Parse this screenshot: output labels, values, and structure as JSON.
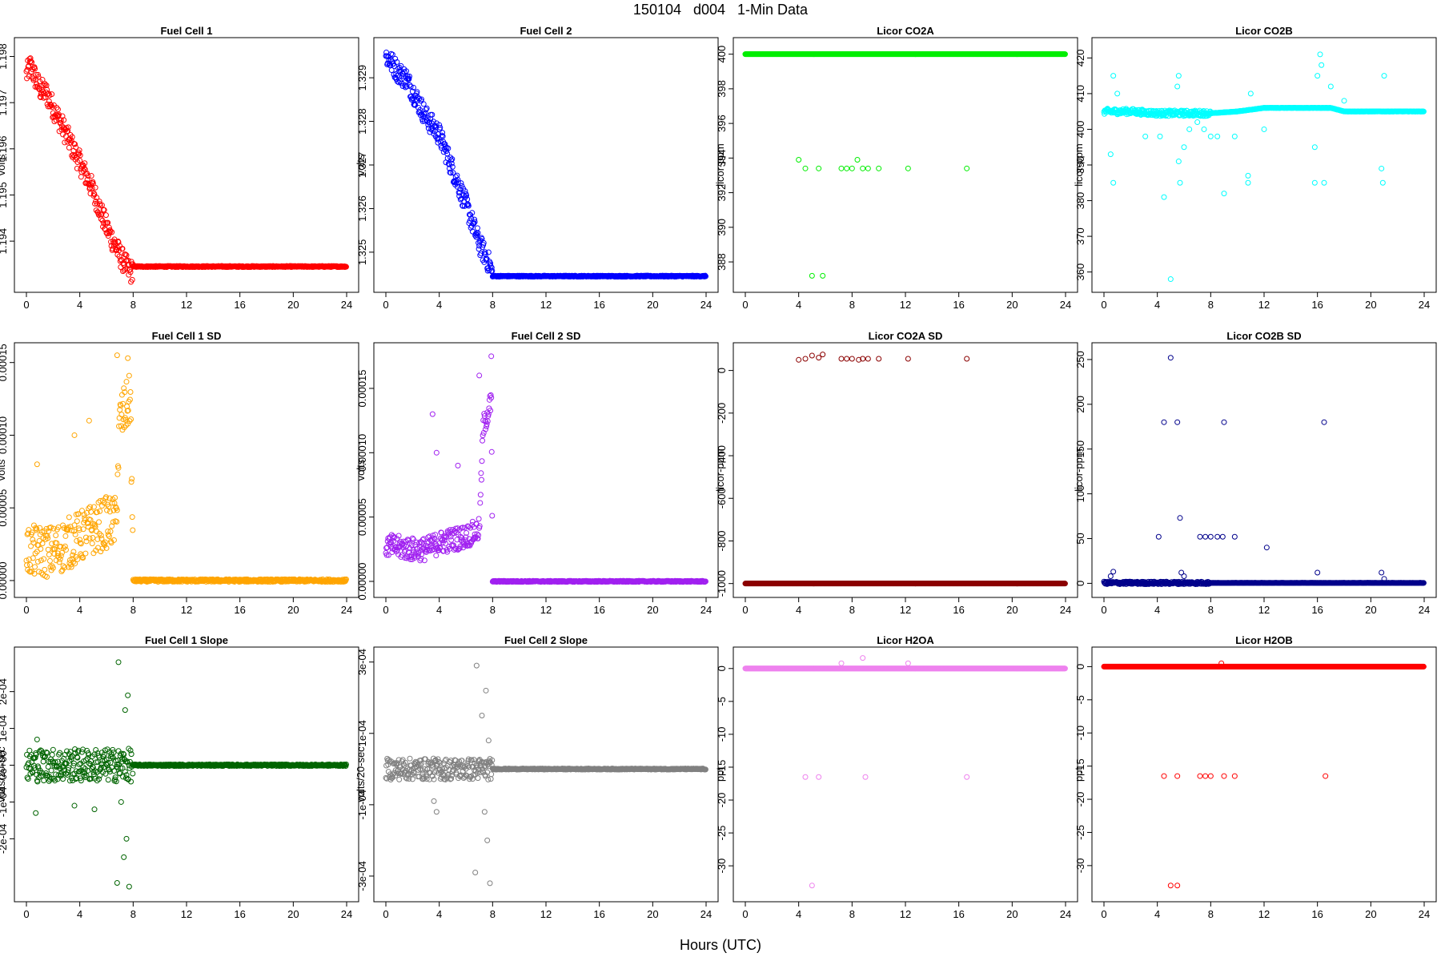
{
  "figure": {
    "title": "150104   d004   1-Min Data",
    "xlabel": "Hours (UTC)"
  },
  "chart_data": [
    {
      "type": "scatter",
      "title": "Fuel Cell 1",
      "ylabel": "volts",
      "color": "#ff0000",
      "xlim": [
        0,
        24
      ],
      "ylim": [
        1.1931,
        1.1982
      ],
      "x_ticks": [
        "0",
        "4",
        "8",
        "12",
        "16",
        "20",
        "24"
      ],
      "y_ticks": [
        "1.194",
        "1.195",
        "1.196",
        "1.197",
        "1.198"
      ],
      "trend": [
        [
          0,
          1.1976
        ],
        [
          0.3,
          1.1978
        ],
        [
          1,
          1.1973
        ],
        [
          1.5,
          1.1972
        ],
        [
          2,
          1.1969
        ],
        [
          3,
          1.1963
        ],
        [
          4,
          1.1957
        ],
        [
          5,
          1.1951
        ],
        [
          6,
          1.1943
        ],
        [
          7,
          1.1937
        ],
        [
          7.8,
          1.1933
        ],
        [
          8,
          1.19345
        ],
        [
          24,
          1.19345
        ]
      ],
      "spread": 0.00025,
      "outliers": []
    },
    {
      "type": "scatter",
      "title": "Fuel Cell 2",
      "ylabel": "volts",
      "color": "#0000ff",
      "xlim": [
        0,
        24
      ],
      "ylim": [
        1.3243,
        1.3297
      ],
      "x_ticks": [
        "0",
        "4",
        "8",
        "12",
        "16",
        "20",
        "24"
      ],
      "y_ticks": [
        "1.325",
        "1.326",
        "1.327",
        "1.328",
        "1.329"
      ],
      "trend": [
        [
          0,
          1.3295
        ],
        [
          0.3,
          1.3294
        ],
        [
          1,
          1.3291
        ],
        [
          1.5,
          1.329
        ],
        [
          2,
          1.3287
        ],
        [
          3,
          1.3281
        ],
        [
          4,
          1.3277
        ],
        [
          5,
          1.3269
        ],
        [
          6,
          1.3261
        ],
        [
          7,
          1.3252
        ],
        [
          7.8,
          1.3247
        ],
        [
          8,
          1.32445
        ],
        [
          24,
          1.32445
        ]
      ],
      "spread": 0.00025,
      "outliers": []
    },
    {
      "type": "scatter",
      "title": "Licor CO2A",
      "ylabel": "licor-ppm",
      "color": "#00ee00",
      "xlim": [
        0,
        24
      ],
      "ylim": [
        386.8,
        400.4
      ],
      "x_ticks": [
        "0",
        "4",
        "8",
        "12",
        "16",
        "20",
        "24"
      ],
      "y_ticks": [
        "388",
        "390",
        "392",
        "394",
        "396",
        "398",
        "400"
      ],
      "trend": [
        [
          0,
          400
        ],
        [
          24,
          400
        ]
      ],
      "spread": 0,
      "outliers": [
        [
          4.0,
          393.9
        ],
        [
          4.5,
          393.4
        ],
        [
          5.5,
          393.4
        ],
        [
          7.2,
          393.4
        ],
        [
          7.6,
          393.4
        ],
        [
          8.0,
          393.4
        ],
        [
          8.4,
          393.9
        ],
        [
          8.8,
          393.4
        ],
        [
          9.2,
          393.4
        ],
        [
          10.0,
          393.4
        ],
        [
          12.2,
          393.4
        ],
        [
          16.6,
          393.4
        ],
        [
          5.0,
          387.2
        ],
        [
          5.8,
          387.2
        ]
      ]
    },
    {
      "type": "scatter",
      "title": "Licor CO2B",
      "ylabel": "licor-ppm",
      "color": "#00ffff",
      "xlim": [
        0,
        24
      ],
      "ylim": [
        357,
        423
      ],
      "x_ticks": [
        "0",
        "4",
        "8",
        "12",
        "16",
        "20",
        "24"
      ],
      "y_ticks": [
        "360",
        "370",
        "380",
        "390",
        "400",
        "410",
        "420"
      ],
      "trend": [
        [
          0,
          405
        ],
        [
          2,
          405
        ],
        [
          4,
          404.5
        ],
        [
          6,
          404.5
        ],
        [
          8,
          404.5
        ],
        [
          10,
          405
        ],
        [
          12,
          406
        ],
        [
          14,
          406
        ],
        [
          16,
          406
        ],
        [
          17,
          406
        ],
        [
          18,
          405
        ],
        [
          20,
          405
        ],
        [
          24,
          405
        ]
      ],
      "spread": 0.8,
      "outliers": [
        [
          0.7,
          415
        ],
        [
          0.7,
          385
        ],
        [
          0.5,
          393
        ],
        [
          1.0,
          410
        ],
        [
          3.1,
          398
        ],
        [
          4.2,
          398
        ],
        [
          4.5,
          381
        ],
        [
          5.0,
          358
        ],
        [
          5.5,
          412
        ],
        [
          5.6,
          415
        ],
        [
          5.6,
          391
        ],
        [
          5.7,
          385
        ],
        [
          6.0,
          395
        ],
        [
          6.4,
          400
        ],
        [
          7.0,
          402
        ],
        [
          7.5,
          400
        ],
        [
          8.0,
          398
        ],
        [
          8.5,
          398
        ],
        [
          9.0,
          382
        ],
        [
          9.8,
          398
        ],
        [
          10.8,
          387
        ],
        [
          10.8,
          385
        ],
        [
          11.0,
          410
        ],
        [
          12.0,
          400
        ],
        [
          15.8,
          395
        ],
        [
          15.8,
          385
        ],
        [
          16.0,
          415
        ],
        [
          16.2,
          421
        ],
        [
          16.3,
          418
        ],
        [
          16.5,
          385
        ],
        [
          17.0,
          412
        ],
        [
          18.0,
          408
        ],
        [
          20.8,
          389
        ],
        [
          20.9,
          385
        ],
        [
          21.0,
          415
        ]
      ]
    },
    {
      "type": "scatter",
      "title": "Fuel Cell 1 SD",
      "ylabel": "volts",
      "color": "#ffa500",
      "xlim": [
        0,
        24
      ],
      "ylim": [
        -5e-06,
        0.000157
      ],
      "x_ticks": [
        "0",
        "4",
        "8",
        "12",
        "16",
        "20",
        "24"
      ],
      "y_ticks": [
        "0.00000",
        "0.00005",
        "0.00010",
        "0.00015"
      ],
      "trend": [
        [
          0,
          2e-05
        ],
        [
          1,
          2e-05
        ],
        [
          2,
          2e-05
        ],
        [
          3,
          2.5e-05
        ],
        [
          4,
          3e-05
        ],
        [
          5,
          3.5e-05
        ],
        [
          6,
          4e-05
        ],
        [
          6.7,
          4e-05
        ],
        [
          7.0,
          0.00011
        ],
        [
          7.8,
          0.000125
        ],
        [
          8,
          0
        ],
        [
          24,
          0
        ]
      ],
      "spread": 1.8e-05,
      "outliers": [
        [
          0.8,
          8e-05
        ],
        [
          3.6,
          0.0001
        ],
        [
          4.7,
          0.00011
        ],
        [
          6.8,
          0.000155
        ],
        [
          7.6,
          0.000153
        ]
      ]
    },
    {
      "type": "scatter",
      "title": "Fuel Cell 2 SD",
      "ylabel": "volts",
      "color": "#a020f0",
      "xlim": [
        0,
        24
      ],
      "ylim": [
        -5e-06,
        0.000178
      ],
      "x_ticks": [
        "0",
        "4",
        "8",
        "12",
        "16",
        "20",
        "24"
      ],
      "y_ticks": [
        "0.00000",
        "0.00005",
        "0.00010",
        "0.00015"
      ],
      "trend": [
        [
          0,
          2.8e-05
        ],
        [
          2,
          2.5e-05
        ],
        [
          3,
          2.5e-05
        ],
        [
          4,
          3e-05
        ],
        [
          6,
          3.5e-05
        ],
        [
          7,
          4e-05
        ],
        [
          7.3,
          0.00012
        ],
        [
          7.9,
          0.00014
        ],
        [
          8,
          0
        ],
        [
          24,
          0
        ]
      ],
      "spread": 9e-06,
      "outliers": [
        [
          3.5,
          0.00013
        ],
        [
          3.8,
          0.0001
        ],
        [
          5.4,
          9e-05
        ],
        [
          7.0,
          0.00016
        ],
        [
          7.9,
          0.000175
        ]
      ]
    },
    {
      "type": "scatter",
      "title": "Licor CO2A SD",
      "ylabel": "licor-ppm",
      "color": "#8b0000",
      "xlim": [
        0,
        24
      ],
      "ylim": [
        -1020,
        85
      ],
      "x_ticks": [
        "0",
        "4",
        "8",
        "12",
        "16",
        "20",
        "24"
      ],
      "y_ticks": [
        "-1000",
        "-800",
        "-600",
        "-400",
        "-200",
        "0"
      ],
      "trend": [
        [
          0,
          -1000
        ],
        [
          24,
          -1000
        ]
      ],
      "spread": 0,
      "outliers": [
        [
          4.0,
          50
        ],
        [
          4.5,
          55
        ],
        [
          5.0,
          70
        ],
        [
          5.5,
          60
        ],
        [
          5.8,
          75
        ],
        [
          7.2,
          55
        ],
        [
          7.6,
          55
        ],
        [
          8.0,
          55
        ],
        [
          8.5,
          50
        ],
        [
          8.8,
          55
        ],
        [
          9.2,
          55
        ],
        [
          10.0,
          55
        ],
        [
          12.2,
          55
        ],
        [
          16.6,
          55
        ]
      ]
    },
    {
      "type": "scatter",
      "title": "Licor CO2B SD",
      "ylabel": "licor-ppm",
      "color": "#00008b",
      "xlim": [
        0,
        24
      ],
      "ylim": [
        -5,
        258
      ],
      "x_ticks": [
        "0",
        "4",
        "8",
        "12",
        "16",
        "20",
        "24"
      ],
      "y_ticks": [
        "0",
        "50",
        "100",
        "150",
        "200",
        "250"
      ],
      "trend": [
        [
          0,
          0.5
        ],
        [
          24,
          0.5
        ]
      ],
      "spread": 1.5,
      "outliers": [
        [
          0.5,
          8
        ],
        [
          0.7,
          13
        ],
        [
          4.1,
          52
        ],
        [
          4.5,
          180
        ],
        [
          5.0,
          252
        ],
        [
          5.5,
          180
        ],
        [
          5.7,
          73
        ],
        [
          5.8,
          12
        ],
        [
          6.0,
          8
        ],
        [
          7.2,
          52
        ],
        [
          7.6,
          52
        ],
        [
          8.0,
          52
        ],
        [
          8.5,
          52
        ],
        [
          8.9,
          52
        ],
        [
          9.0,
          180
        ],
        [
          9.8,
          52
        ],
        [
          12.2,
          40
        ],
        [
          16.0,
          12
        ],
        [
          16.5,
          180
        ],
        [
          20.8,
          12
        ],
        [
          21.0,
          5
        ]
      ]
    },
    {
      "type": "scatter",
      "title": "Fuel Cell 1 Slope",
      "ylabel": "volts/20-sec",
      "color": "#006400",
      "xlim": [
        0,
        24
      ],
      "ylim": [
        -0.000345,
        0.000295
      ],
      "x_ticks": [
        "0",
        "4",
        "8",
        "12",
        "16",
        "20",
        "24"
      ],
      "y_ticks": [
        "-2e-04",
        "-1e-04",
        "0e+00",
        "1e-04",
        "2e-04"
      ],
      "trend": [
        [
          0,
          0
        ],
        [
          6.9,
          0
        ],
        [
          7.0,
          0
        ],
        [
          8,
          0
        ],
        [
          24,
          0
        ]
      ],
      "spread": 4.5e-05,
      "outliers": [
        [
          0.7,
          -0.00013
        ],
        [
          0.8,
          7e-05
        ],
        [
          3.6,
          -0.00011
        ],
        [
          5.1,
          -0.00012
        ],
        [
          6.8,
          -0.00032
        ],
        [
          6.9,
          0.00028
        ],
        [
          7.1,
          -0.0001
        ],
        [
          7.4,
          0.00015
        ],
        [
          7.6,
          0.00019
        ],
        [
          7.5,
          -0.0002
        ],
        [
          7.7,
          -0.00033
        ],
        [
          7.3,
          -0.00025
        ]
      ]
    },
    {
      "type": "scatter",
      "title": "Fuel Cell 2 Slope",
      "ylabel": "volts/20-sec",
      "color": "#808080",
      "xlim": [
        0,
        24
      ],
      "ylim": [
        -0.000345,
        0.000315
      ],
      "x_ticks": [
        "0",
        "4",
        "8",
        "12",
        "16",
        "20",
        "24"
      ],
      "y_ticks": [
        "-3e-04",
        "-1e-04",
        "1e-04",
        "3e-04"
      ],
      "trend": [
        [
          0,
          0
        ],
        [
          7,
          0
        ],
        [
          8,
          0
        ],
        [
          24,
          0
        ]
      ],
      "spread": 3e-05,
      "outliers": [
        [
          3.6,
          -9e-05
        ],
        [
          3.8,
          -0.00012
        ],
        [
          6.7,
          -0.00029
        ],
        [
          6.8,
          0.00029
        ],
        [
          7.2,
          0.00015
        ],
        [
          7.5,
          0.00022
        ],
        [
          7.6,
          -0.0002
        ],
        [
          7.8,
          -0.00032
        ],
        [
          7.4,
          -0.00012
        ],
        [
          7.7,
          8e-05
        ]
      ]
    },
    {
      "type": "scatter",
      "title": "Licor H2OA",
      "ylabel": "ppt",
      "color": "#ee82ee",
      "xlim": [
        0,
        24
      ],
      "ylim": [
        -34,
        1.8
      ],
      "x_ticks": [
        "0",
        "4",
        "8",
        "12",
        "16",
        "20",
        "24"
      ],
      "y_ticks": [
        "-30",
        "-25",
        "-20",
        "-15",
        "-10",
        "-5",
        "0"
      ],
      "trend": [
        [
          0,
          0
        ],
        [
          24,
          0
        ]
      ],
      "spread": 0,
      "outliers": [
        [
          4.5,
          -16.5
        ],
        [
          5.5,
          -16.5
        ],
        [
          5.0,
          -33
        ],
        [
          7.2,
          0.8
        ],
        [
          8.8,
          1.6
        ],
        [
          9.0,
          -16.5
        ],
        [
          12.2,
          0.8
        ],
        [
          16.6,
          -16.5
        ]
      ]
    },
    {
      "type": "scatter",
      "title": "Licor H2OB",
      "ylabel": "ppt",
      "color": "#ff0000",
      "xlim": [
        0,
        24
      ],
      "ylim": [
        -34,
        1.5
      ],
      "x_ticks": [
        "0",
        "4",
        "8",
        "12",
        "16",
        "20",
        "24"
      ],
      "y_ticks": [
        "-30",
        "-25",
        "-20",
        "-15",
        "-10",
        "-5",
        "0"
      ],
      "trend": [
        [
          0,
          0
        ],
        [
          24,
          0
        ]
      ],
      "spread": 0,
      "outliers": [
        [
          4.5,
          -16.5
        ],
        [
          5.0,
          -33
        ],
        [
          5.5,
          -16.5
        ],
        [
          5.5,
          -33
        ],
        [
          7.2,
          -16.5
        ],
        [
          7.6,
          -16.5
        ],
        [
          8.0,
          -16.5
        ],
        [
          8.8,
          0.5
        ],
        [
          9.0,
          -16.5
        ],
        [
          9.8,
          -16.5
        ],
        [
          16.6,
          -16.5
        ]
      ]
    }
  ]
}
